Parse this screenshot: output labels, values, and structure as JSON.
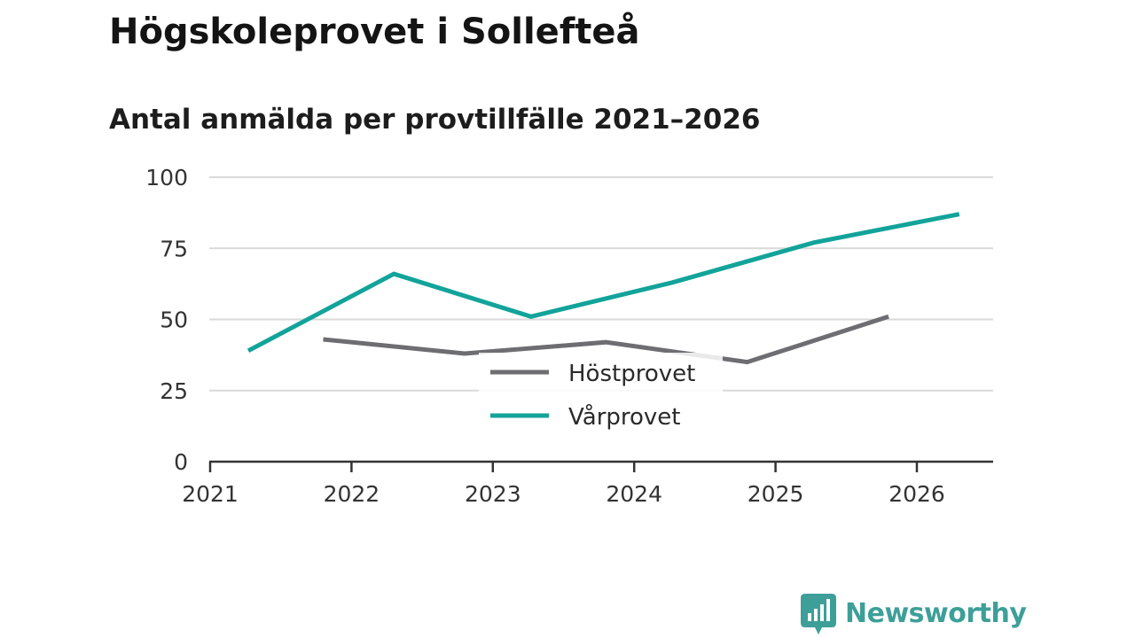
{
  "colors": {
    "vt": "#12a39a",
    "ht": "#6e6d72",
    "grid": "#d9d9d9",
    "axis": "#333333",
    "brand": "#3d9f98"
  },
  "brand": {
    "name": "Newsworthy",
    "icon": "newsworthy-logo-icon"
  },
  "chart_data": {
    "type": "line",
    "title": "Högskoleprovet i Sollefteå",
    "subtitle": "Antal anmälda per provtillfälle 2021–2026",
    "xlabel": "",
    "ylabel": "",
    "x_ticks": [
      "2021",
      "2022",
      "2023",
      "2024",
      "2025",
      "2026"
    ],
    "y_ticks": [
      "0",
      "25",
      "50",
      "75",
      "100"
    ],
    "xlim": [
      2021,
      2026.55
    ],
    "ylim": [
      0,
      100
    ],
    "grid": true,
    "legend_position": "center",
    "series": [
      {
        "name": "Höstprovet",
        "color_key": "ht",
        "points": [
          {
            "x": 2021.8,
            "y": 43
          },
          {
            "x": 2022.8,
            "y": 38
          },
          {
            "x": 2023.8,
            "y": 42
          },
          {
            "x": 2024.8,
            "y": 35
          },
          {
            "x": 2025.8,
            "y": 51
          }
        ]
      },
      {
        "name": "Vårprovet",
        "color_key": "vt",
        "points": [
          {
            "x": 2021.27,
            "y": 39
          },
          {
            "x": 2022.3,
            "y": 66
          },
          {
            "x": 2023.27,
            "y": 51
          },
          {
            "x": 2024.27,
            "y": 63
          },
          {
            "x": 2025.27,
            "y": 77
          },
          {
            "x": 2026.3,
            "y": 87
          }
        ]
      }
    ]
  }
}
